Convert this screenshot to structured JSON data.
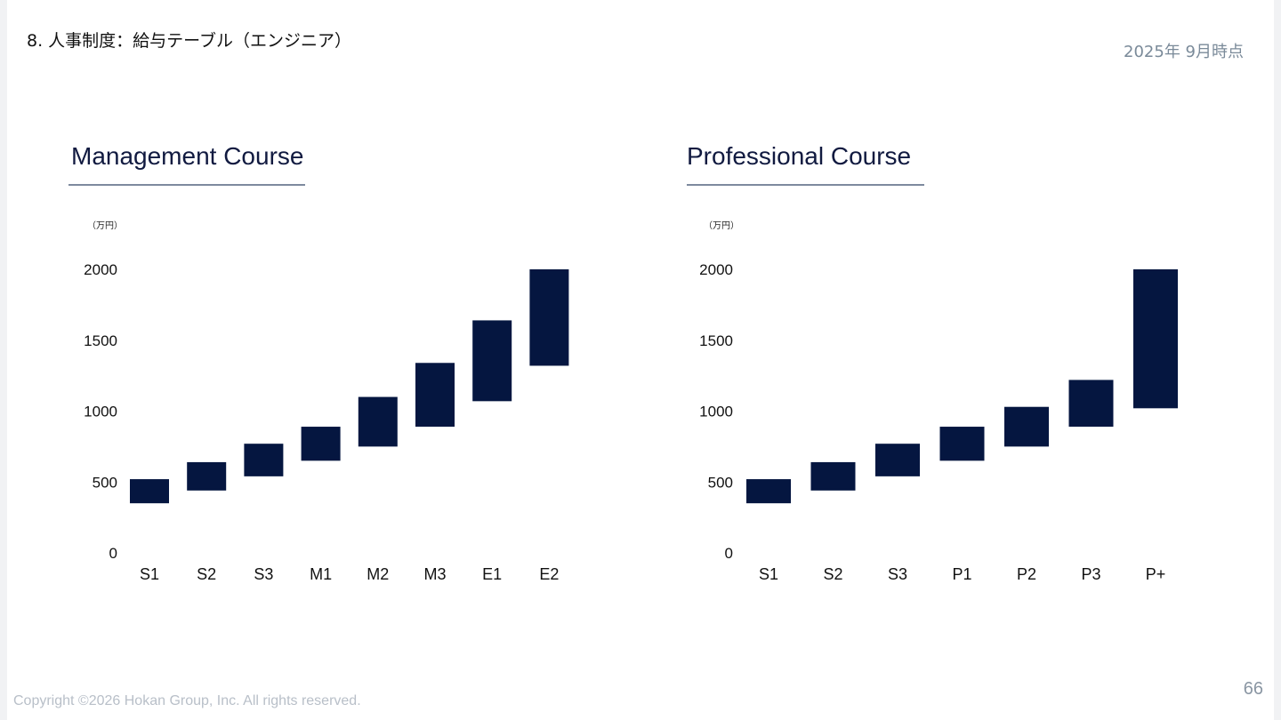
{
  "header": {
    "title": "8. 人事制度：給与テーブル（エンジニア）",
    "as_of": "2025年 9月時点"
  },
  "management": {
    "title": "Management Course",
    "unit": "（万円）"
  },
  "professional": {
    "title": "Professional Course",
    "unit": "（万円）"
  },
  "footer": {
    "copyright": "Copyright ©2026 Hokan Group, Inc. All rights reserved.",
    "page": "66"
  },
  "colors": {
    "bar": "#051640",
    "rule": "#7e8a9e"
  },
  "chart_data": [
    {
      "type": "bar",
      "subtype": "floating-range",
      "title": "Management Course",
      "ylabel": "（万円）",
      "ylim": [
        0,
        2000
      ],
      "yticks": [
        0,
        500,
        1000,
        1500,
        2000
      ],
      "grid": false,
      "categories": [
        "S1",
        "S2",
        "S3",
        "M1",
        "M2",
        "M3",
        "E1",
        "E2"
      ],
      "ranges": [
        [
          350,
          520
        ],
        [
          440,
          640
        ],
        [
          540,
          770
        ],
        [
          650,
          890
        ],
        [
          750,
          1100
        ],
        [
          890,
          1340
        ],
        [
          1070,
          1640
        ],
        [
          1320,
          2000
        ]
      ]
    },
    {
      "type": "bar",
      "subtype": "floating-range",
      "title": "Professional Course",
      "ylabel": "（万円）",
      "ylim": [
        0,
        2000
      ],
      "yticks": [
        0,
        500,
        1000,
        1500,
        2000
      ],
      "grid": false,
      "categories": [
        "S1",
        "S2",
        "S3",
        "P1",
        "P2",
        "P3",
        "P+"
      ],
      "ranges": [
        [
          350,
          520
        ],
        [
          440,
          640
        ],
        [
          540,
          770
        ],
        [
          650,
          890
        ],
        [
          750,
          1030
        ],
        [
          890,
          1220
        ],
        [
          1020,
          2000
        ]
      ]
    }
  ]
}
